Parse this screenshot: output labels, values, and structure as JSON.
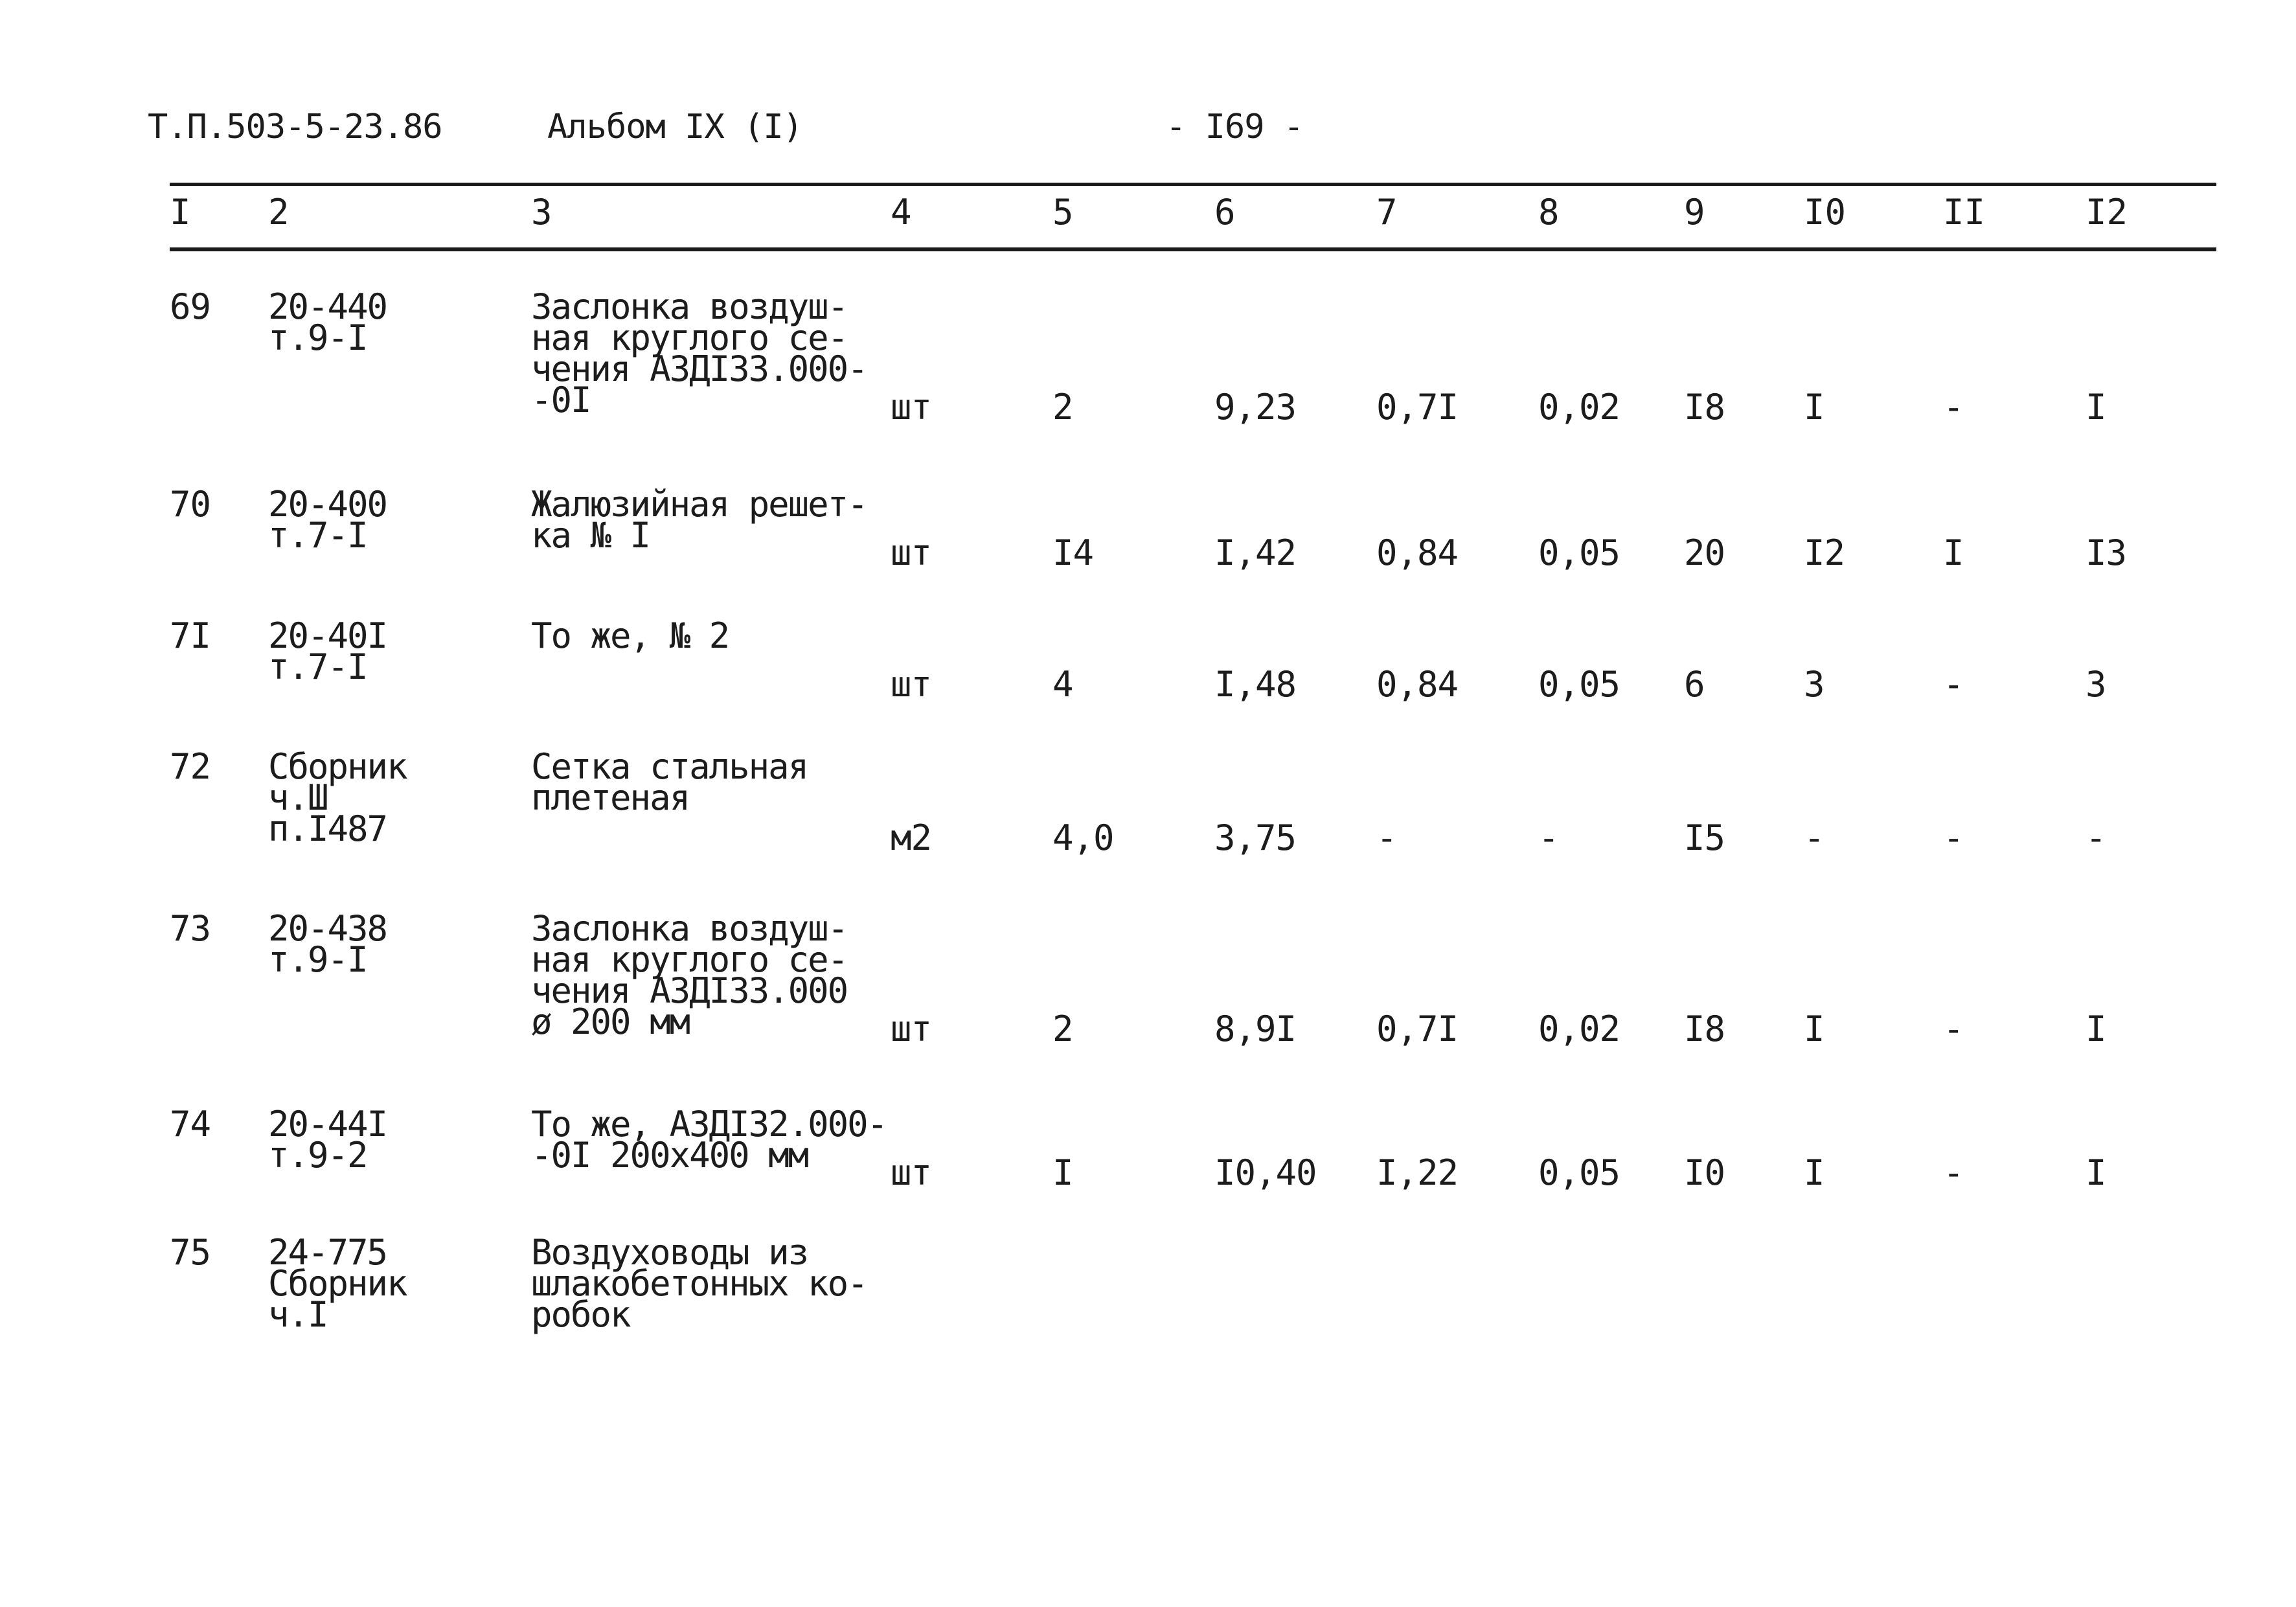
{
  "header": {
    "doc_code": "Т.П.503-5-23.86",
    "album": "Альбом IX (I)",
    "page": "- I69 -"
  },
  "columns": [
    "I",
    "2",
    "3",
    "4",
    "5",
    "6",
    "7",
    "8",
    "9",
    "I0",
    "II",
    "I2"
  ],
  "rows": [
    {
      "num": "69",
      "ref": "20-440\nт.9-I",
      "desc": "Заслонка воздуш-\nная круглого се-\nчения АЗДI33.000-\n-0I",
      "unit": "шт",
      "c5": "2",
      "c6": "9,23",
      "c7": "0,7I",
      "c8": "0,02",
      "c9": "I8",
      "c10": "I",
      "c11": "-",
      "c12": "I"
    },
    {
      "num": "70",
      "ref": "20-400\nт.7-I",
      "desc": "Жалюзийная решет-\nка № I",
      "unit": "шт",
      "c5": "I4",
      "c6": "I,42",
      "c7": "0,84",
      "c8": "0,05",
      "c9": "20",
      "c10": "I2",
      "c11": "I",
      "c12": "I3"
    },
    {
      "num": "7I",
      "ref": "20-40I\nт.7-I",
      "desc": "То же, № 2",
      "unit": "шт",
      "c5": "4",
      "c6": "I,48",
      "c7": "0,84",
      "c8": "0,05",
      "c9": "6",
      "c10": "3",
      "c11": "-",
      "c12": "3"
    },
    {
      "num": "72",
      "ref": "Сборник\nч.Ш\nп.I487",
      "desc": "Сетка стальная\nплетеная",
      "unit": "м2",
      "c5": "4,0",
      "c6": "3,75",
      "c7": "-",
      "c8": "-",
      "c9": "I5",
      "c10": "-",
      "c11": "-",
      "c12": "-"
    },
    {
      "num": "73",
      "ref": "20-438\nт.9-I",
      "desc": "Заслонка воздуш-\nная круглого се-\nчения АЗДI33.000\nø 200 мм",
      "unit": "шт",
      "c5": "2",
      "c6": "8,9I",
      "c7": "0,7I",
      "c8": "0,02",
      "c9": "I8",
      "c10": "I",
      "c11": "-",
      "c12": "I"
    },
    {
      "num": "74",
      "ref": "20-44I\nт.9-2",
      "desc": "То же, АЗДI32.000-\n-0I 200х400 мм",
      "unit": "шт",
      "c5": "I",
      "c6": "I0,40",
      "c7": "I,22",
      "c8": "0,05",
      "c9": "I0",
      "c10": "I",
      "c11": "-",
      "c12": "I"
    },
    {
      "num": "75",
      "ref": "24-775\nСборник\nч.I",
      "desc": "Воздуховоды из\nшлакобетонных ко-\nробок",
      "unit": "",
      "c5": "",
      "c6": "",
      "c7": "",
      "c8": "",
      "c9": "",
      "c10": "",
      "c11": "",
      "c12": ""
    }
  ]
}
